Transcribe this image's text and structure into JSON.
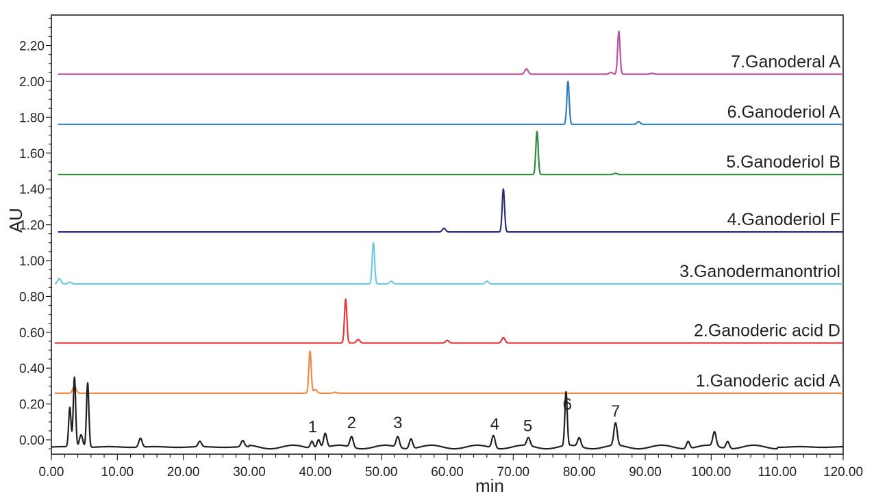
{
  "chart_data": {
    "type": "line",
    "xlabel": "min",
    "ylabel": "AU",
    "xlim": [
      0,
      120
    ],
    "ylim": [
      -0.08,
      2.37
    ],
    "x_ticks": [
      "0.00",
      "10.00",
      "20.00",
      "30.00",
      "40.00",
      "50.00",
      "60.00",
      "70.00",
      "80.00",
      "90.00",
      "100.00",
      "110.00",
      "120.00"
    ],
    "y_ticks": [
      "0.00",
      "0.20",
      "0.40",
      "0.60",
      "0.80",
      "1.00",
      "1.20",
      "1.40",
      "1.60",
      "1.80",
      "2.00",
      "2.20"
    ],
    "series": [
      {
        "name": "7.Ganoderal A",
        "color": "#c0519e",
        "baseline": 2.04,
        "peaks": [
          {
            "x": 72.0,
            "y": 2.07
          },
          {
            "x": 84.8,
            "y": 2.05
          },
          {
            "x": 86.0,
            "y": 2.28
          },
          {
            "x": 91.0,
            "y": 2.045
          }
        ]
      },
      {
        "name": "6.Ganoderiol A",
        "color": "#2e7dc2",
        "baseline": 1.76,
        "peaks": [
          {
            "x": 78.3,
            "y": 2.0
          },
          {
            "x": 89.0,
            "y": 1.775
          }
        ]
      },
      {
        "name": "5.Ganoderiol B",
        "color": "#2e8b3e",
        "baseline": 1.48,
        "peaks": [
          {
            "x": 73.6,
            "y": 1.72
          },
          {
            "x": 85.5,
            "y": 1.487
          }
        ]
      },
      {
        "name": "4.Ganoderiol F",
        "color": "#2d2f7a",
        "baseline": 1.16,
        "peaks": [
          {
            "x": 59.5,
            "y": 1.18
          },
          {
            "x": 68.5,
            "y": 1.4
          }
        ]
      },
      {
        "name": "3.Ganodermanontriol",
        "color": "#6fcbdc",
        "baseline": 0.87,
        "peaks": [
          {
            "x": 1.2,
            "y": 0.9
          },
          {
            "x": 2.8,
            "y": 0.88
          },
          {
            "x": 48.8,
            "y": 1.1
          },
          {
            "x": 51.5,
            "y": 0.885
          },
          {
            "x": 66.0,
            "y": 0.885
          }
        ]
      },
      {
        "name": "2.Ganoderic acid D",
        "color": "#e8363a",
        "baseline": 0.54,
        "peaks": [
          {
            "x": 44.6,
            "y": 0.785
          },
          {
            "x": 46.5,
            "y": 0.56
          },
          {
            "x": 60.0,
            "y": 0.555
          },
          {
            "x": 68.5,
            "y": 0.57
          }
        ]
      },
      {
        "name": "1.Ganoderic acid A",
        "color": "#f08a48",
        "baseline": 0.26,
        "peaks": [
          {
            "x": 3.5,
            "y": 0.3
          },
          {
            "x": 39.2,
            "y": 0.495
          },
          {
            "x": 40.0,
            "y": 0.28
          },
          {
            "x": 43.0,
            "y": 0.265
          }
        ]
      },
      {
        "name": "",
        "color": "#231f20",
        "baseline": -0.04,
        "peaks": [
          {
            "x": 2.8,
            "y": 0.18
          },
          {
            "x": 3.5,
            "y": 0.35
          },
          {
            "x": 4.5,
            "y": 0.03
          },
          {
            "x": 5.5,
            "y": 0.32
          },
          {
            "x": 13.5,
            "y": 0.01
          },
          {
            "x": 22.5,
            "y": -0.01
          },
          {
            "x": 29.0,
            "y": -0.005
          },
          {
            "x": 39.5,
            "y": 0.0
          },
          {
            "x": 40.5,
            "y": 0.01
          },
          {
            "x": 41.5,
            "y": 0.04
          },
          {
            "x": 45.5,
            "y": 0.02
          },
          {
            "x": 52.5,
            "y": 0.02
          },
          {
            "x": 54.5,
            "y": 0.015
          },
          {
            "x": 67.0,
            "y": 0.03
          },
          {
            "x": 72.3,
            "y": 0.005
          },
          {
            "x": 78.0,
            "y": 0.26
          },
          {
            "x": 80.0,
            "y": 0.01
          },
          {
            "x": 85.5,
            "y": 0.085
          },
          {
            "x": 96.5,
            "y": 0.0
          },
          {
            "x": 100.5,
            "y": 0.04
          },
          {
            "x": 102.5,
            "y": 0.0
          }
        ]
      }
    ],
    "peak_annotations": [
      {
        "label": "1",
        "x": 39.6
      },
      {
        "label": "2",
        "x": 45.5
      },
      {
        "label": "3",
        "x": 52.5
      },
      {
        "label": "4",
        "x": 67.2
      },
      {
        "label": "5",
        "x": 72.2
      },
      {
        "label": "6",
        "x": 78.2
      },
      {
        "label": "7",
        "x": 85.5
      }
    ]
  }
}
